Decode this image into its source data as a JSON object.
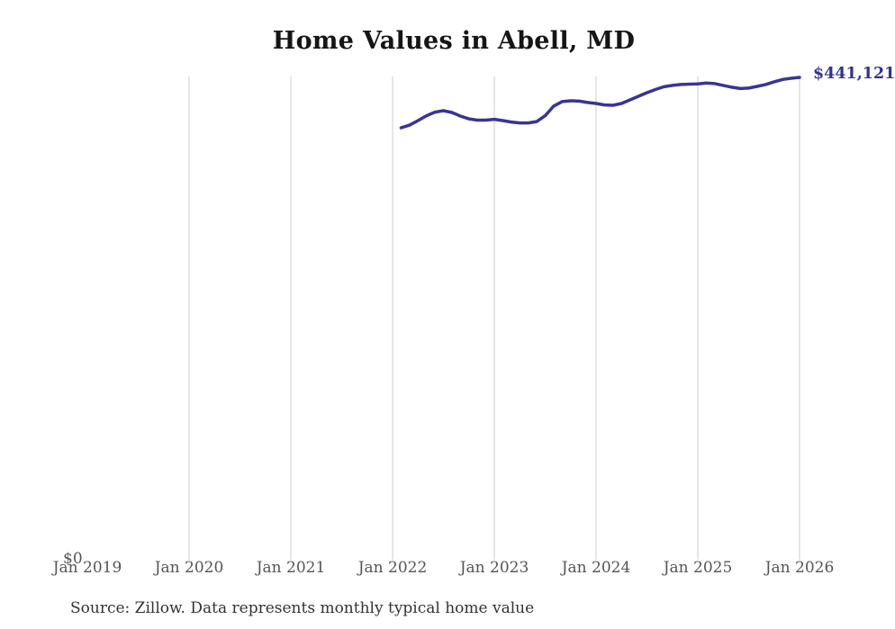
{
  "page": {
    "title": "Home Values in Abell, MD",
    "source_note": "Source: Zillow. Data represents monthly typical home value"
  },
  "chart_data": {
    "type": "line",
    "title": "Home Values in Abell, MD",
    "x_tick_labels": [
      "Jan 2019",
      "Jan 2020",
      "Jan 2021",
      "Jan 2022",
      "Jan 2023",
      "Jan 2024",
      "Jan 2025",
      "Jan 2026"
    ],
    "y_axis": {
      "min": 0,
      "min_label": "$0",
      "max": 441121
    },
    "grid": "vertical",
    "legend": "none",
    "colors": {
      "line": "#3a3493",
      "gridline": "#cccccc",
      "tick_text": "#555555",
      "end_label_text": "#33338f"
    },
    "end_label": "$441,121",
    "series": [
      {
        "name": "Typical home value",
        "color": "#3a3493",
        "cadence": "monthly",
        "start_month": "2022-02",
        "end_month": "2026-01",
        "values": [
          394900,
          397300,
          401500,
          406000,
          409300,
          410600,
          408900,
          405600,
          403100,
          401900,
          401900,
          402700,
          401500,
          400200,
          399400,
          399400,
          400600,
          406000,
          414800,
          418900,
          419700,
          419300,
          418100,
          417200,
          415900,
          415500,
          417200,
          420500,
          423800,
          427100,
          430000,
          432500,
          433800,
          434600,
          434900,
          435100,
          435900,
          435400,
          433800,
          432100,
          430900,
          431300,
          432900,
          434600,
          437100,
          439200,
          440300,
          441121
        ]
      }
    ]
  }
}
